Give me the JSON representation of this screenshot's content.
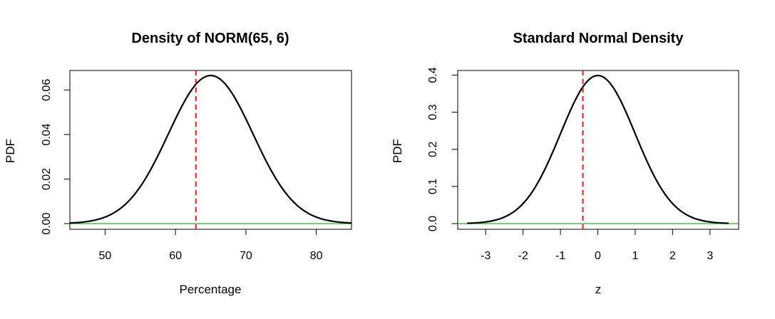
{
  "chart_data": [
    {
      "type": "line",
      "title": "Density of NORM(65, 6)",
      "xlabel": "Percentage",
      "ylabel": "PDF",
      "distribution": {
        "mean": 65,
        "sd": 6
      },
      "xlim": [
        45,
        85
      ],
      "ylim": [
        0,
        0.0665
      ],
      "x_ticks": [
        "50",
        "60",
        "70",
        "80"
      ],
      "y_ticks": [
        "0.00",
        "0.02",
        "0.04",
        "0.06"
      ],
      "reference_vline": {
        "x": 62.9,
        "color": "#e31a1c",
        "style": "dashed"
      },
      "reference_hline": {
        "y": 0,
        "color": "#22b422"
      },
      "series_color": "#000000",
      "grid": false
    },
    {
      "type": "line",
      "title": "Standard Normal Density",
      "xlabel": "z",
      "ylabel": "PDF",
      "distribution": {
        "mean": 0,
        "sd": 1
      },
      "xlim": [
        -3.5,
        3.5
      ],
      "ylim": [
        0,
        0.399
      ],
      "x_ticks": [
        "-3",
        "-2",
        "-1",
        "0",
        "1",
        "2",
        "3"
      ],
      "y_ticks": [
        "0.0",
        "0.1",
        "0.2",
        "0.3",
        "0.4"
      ],
      "reference_vline": {
        "x": -0.4,
        "color": "#e31a1c",
        "style": "dashed"
      },
      "reference_hline": {
        "y": 0,
        "color": "#22b422"
      },
      "series_color": "#000000",
      "grid": false
    }
  ]
}
